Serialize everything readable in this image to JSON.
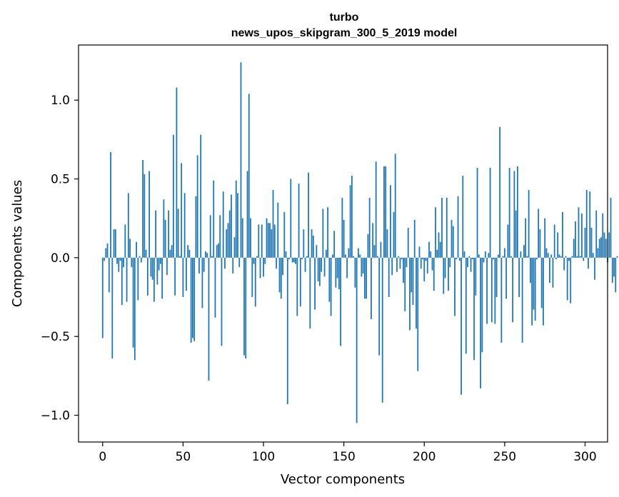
{
  "chart_data": {
    "type": "bar",
    "title": "turbo",
    "subtitle": "news_upos_skipgram_300_5_2019 model",
    "xlabel": "Vector components",
    "ylabel": "Components values",
    "xlim": [
      -15,
      314
    ],
    "ylim": [
      -1.17,
      1.35
    ],
    "xticks": [
      0,
      50,
      100,
      150,
      200,
      250,
      300
    ],
    "yticks": [
      1.0,
      0.5,
      0.0,
      -0.5,
      -1.0
    ],
    "xtick_labels": [
      "0",
      "50",
      "100",
      "150",
      "200",
      "250",
      "300"
    ],
    "ytick_labels": [
      "1.0",
      "0.5",
      "0.0",
      "−0.5",
      "−1.0"
    ],
    "grid": false,
    "color": "#1f77b4",
    "values": [
      -0.51,
      -0.02,
      0.06,
      0.09,
      -0.22,
      0.67,
      -0.64,
      0.18,
      0.18,
      -0.04,
      -0.09,
      -0.02,
      -0.3,
      -0.06,
      0.21,
      -0.28,
      0.41,
      0.12,
      -0.06,
      -0.57,
      -0.65,
      0.1,
      -0.27,
      0.01,
      -0.03,
      0.62,
      0.53,
      0.05,
      -0.24,
      0.55,
      -0.12,
      -0.14,
      -0.28,
      0.3,
      -0.17,
      -0.08,
      -0.04,
      -0.26,
      0.37,
      0.24,
      -0.11,
      0.3,
      0.05,
      0.08,
      0.78,
      -0.24,
      1.08,
      0.31,
      0.01,
      0.6,
      -0.25,
      0.41,
      -0.21,
      0.08,
      0.05,
      -0.54,
      -0.51,
      -0.53,
      0.39,
      0.65,
      -0.1,
      0.78,
      -0.32,
      -0.09,
      0.04,
      0.03,
      -0.78,
      0.27,
      0.01,
      0.49,
      -0.38,
      0.08,
      0.09,
      0.27,
      -0.56,
      0.42,
      -0.07,
      0.18,
      0.22,
      0.3,
      0.4,
      -0.1,
      0.13,
      0.49,
      0.41,
      -0.06,
      1.24,
      0.25,
      -0.62,
      -0.64,
      0.55,
      1.04,
      0.25,
      -0.25,
      -0.04,
      -0.31,
      0.01,
      0.21,
      -0.13,
      0.21,
      -0.12,
      -0.04,
      0.25,
      0.22,
      0.22,
      0.18,
      0.43,
      0.21,
      -0.07,
      0.35,
      -0.22,
      -0.26,
      -0.11,
      0.29,
      0.04,
      -0.93,
      -0.01,
      0.5,
      -0.03,
      -0.03,
      -0.04,
      -0.37,
      0.47,
      -0.31,
      -0.01,
      0.18,
      -0.09,
      0.01,
      0.54,
      -0.45,
      0.18,
      0.14,
      -0.33,
      0.08,
      -0.15,
      -0.18,
      -0.09,
      0.31,
      -0.12,
      0.05,
      0.32,
      -0.28,
      -0.37,
      0.02,
      0.17,
      -0.19,
      -0.13,
      -0.2,
      -0.56,
      0.38,
      0.24,
      0.02,
      -0.13,
      0.06,
      0.46,
      0.52,
      0.01,
      -0.19,
      -1.05,
      0.06,
      0.02,
      -0.12,
      -0.1,
      -0.26,
      -0.26,
      0.15,
      0.38,
      -0.39,
      0.22,
      0.08,
      0.61,
      0.01,
      -0.62,
      0.1,
      -0.92,
      0.58,
      0.58,
      0.18,
      -0.25,
      0.46,
      -0.11,
      0.29,
      0.66,
      -0.09,
      0.01,
      -0.07,
      -0.01,
      -0.16,
      -0.34,
      -0.06,
      0.19,
      -0.46,
      -0.22,
      -0.3,
      0.24,
      -0.45,
      -0.72,
      0.07,
      -0.07,
      -0.01,
      -0.15,
      -0.02,
      -0.1,
      0.1,
      0.04,
      -0.08,
      -0.21,
      0.32,
      0.05,
      0.16,
      0.1,
      0.38,
      -0.23,
      -0.13,
      0.38,
      -0.21,
      -0.06,
      0.24,
      0.2,
      -0.37,
      -0.01,
      0.39,
      -0.02,
      -0.87,
      0.52,
      0.04,
      -0.61,
      -0.06,
      0.01,
      -0.09,
      -0.01,
      -0.65,
      -0.24,
      0.57,
      0.02,
      -0.83,
      -0.6,
      -0.03,
      0.04,
      -0.42,
      0.03,
      0.57,
      -0.41,
      -0.01,
      -0.42,
      -0.25,
      0.02,
      0.83,
      -0.54,
      0.01,
      0.06,
      -0.26,
      0.21,
      0.57,
      0.01,
      -0.41,
      0.55,
      0.3,
      0.58,
      -0.25,
      0.04,
      -0.54,
      0.08,
      0.25,
      0.01,
      0.43,
      -0.16,
      -0.43,
      -0.33,
      -0.4,
      -0.01,
      0.31,
      0.18,
      -0.32,
      -0.43,
      0.25,
      0.06,
      0.03,
      -0.16,
      0.02,
      -0.19,
      0.21,
      -0.01,
      0.16,
      0.02,
      0.01,
      0.29,
      -0.08,
      0.01,
      -0.27,
      -0.02,
      -0.29,
      0.01,
      0.12,
      0.23,
      0.01,
      0.32,
      0.01,
      0.28,
      -0.02,
      0.19,
      0.43,
      -0.07,
      0.42,
      0.19,
      0.03,
      -0.14,
      0.3,
      0.06,
      0.12,
      0.13,
      0.28,
      0.16,
      0.12,
      -0.03,
      0.16,
      0.38,
      -0.16,
      -0.12,
      -0.22,
      0.01
    ]
  }
}
